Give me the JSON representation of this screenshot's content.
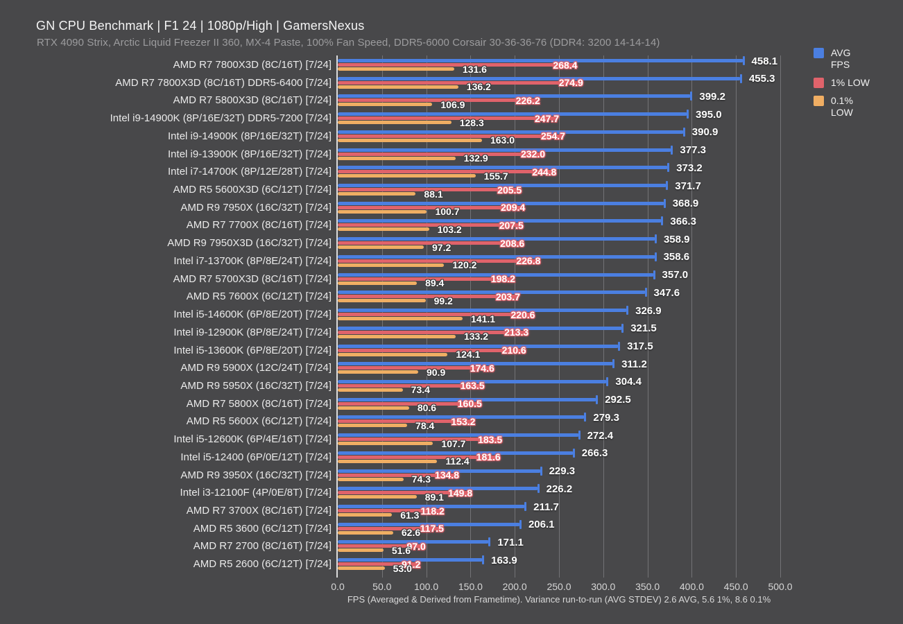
{
  "header": {
    "title": "GN CPU Benchmark | F1 24 | 1080p/High | GamersNexus",
    "subtitle": "RTX 4090 Strix, Arctic Liquid Freezer II 360, MX-4 Paste, 100% Fan Speed, DDR5-6000 Corsair 30-36-36-76 (DDR4: 3200 14-14-14)"
  },
  "legend": {
    "position": "top-right",
    "items": [
      {
        "label": "AVG FPS",
        "color": "#4b7fe1"
      },
      {
        "label": "1% LOW",
        "color": "#e0636b"
      },
      {
        "label": "0.1% LOW",
        "color": "#f0ae63"
      }
    ]
  },
  "chart_data": {
    "type": "bar",
    "orientation": "horizontal",
    "title": "GN CPU Benchmark | F1 24 | 1080p/High | GamersNexus",
    "subtitle": "RTX 4090 Strix, Arctic Liquid Freezer II 360, MX-4 Paste, 100% Fan Speed, DDR5-6000 Corsair 30-36-36-76 (DDR4: 3200 14-14-14)",
    "xlabel": "FPS (Averaged & Derived from Frametime). Variance run-to-run (AVG STDEV) 2.6 AVG, 5.6 1%, 8.6 0.1%",
    "xlim": [
      0,
      500
    ],
    "x_ticks": [
      0,
      50,
      100,
      150,
      200,
      250,
      300,
      350,
      400,
      450,
      500
    ],
    "x_tick_labels": [
      "0.0",
      "50.0",
      "100.0",
      "150.0",
      "200.0",
      "250.0",
      "300.0",
      "350.0",
      "400.0",
      "450.0",
      "500.0"
    ],
    "grid": true,
    "legend_position": "top-right",
    "categories": [
      "AMD R7 7800X3D (8C/16T) [7/24]",
      "AMD R7 7800X3D (8C/16T) DDR5-6400 [7/24]",
      "AMD R7 5800X3D (8C/16T) [7/24]",
      "Intel i9-14900K (8P/16E/32T) DDR5-7200 [7/24]",
      "Intel i9-14900K (8P/16E/32T) [7/24]",
      "Intel i9-13900K (8P/16E/32T) [7/24]",
      "Intel i7-14700K (8P/12E/28T) [7/24]",
      "AMD R5 5600X3D (6C/12T) [7/24]",
      "AMD R9 7950X (16C/32T) [7/24]",
      "AMD R7 7700X (8C/16T) [7/24]",
      "AMD R9 7950X3D (16C/32T) [7/24]",
      "Intel i7-13700K (8P/8E/24T) [7/24]",
      "AMD R7 5700X3D (8C/16T) [7/24]",
      "AMD R5 7600X (6C/12T) [7/24]",
      "Intel i5-14600K (6P/8E/20T) [7/24]",
      "Intel i9-12900K (8P/8E/24T) [7/24]",
      "Intel i5-13600K (6P/8E/20T) [7/24]",
      "AMD R9 5900X (12C/24T) [7/24]",
      "AMD R9 5950X (16C/32T) [7/24]",
      "AMD R7 5800X (8C/16T) [7/24]",
      "AMD R5 5600X (6C/12T) [7/24]",
      "Intel i5-12600K (6P/4E/16T) [7/24]",
      "Intel i5-12400 (6P/0E/12T) [7/24]",
      "AMD R9 3950X (16C/32T) [7/24]",
      "Intel i3-12100F (4P/0E/8T) [7/24]",
      "AMD R7 3700X (8C/16T) [7/24]",
      "AMD R5 3600 (6C/12T) [7/24]",
      "AMD R7 2700 (8C/16T) [7/24]",
      "AMD R5 2600 (6C/12T) [7/24]"
    ],
    "series": [
      {
        "name": "AVG FPS",
        "color": "#4b7fe1",
        "values": [
          458.1,
          455.3,
          399.2,
          395.0,
          390.9,
          377.3,
          373.2,
          371.7,
          368.9,
          366.3,
          358.9,
          358.6,
          357.0,
          347.6,
          326.9,
          321.5,
          317.5,
          311.2,
          304.4,
          292.5,
          279.3,
          272.4,
          266.3,
          229.3,
          226.2,
          211.7,
          206.1,
          171.1,
          163.9
        ]
      },
      {
        "name": "1% LOW",
        "color": "#e0636b",
        "values": [
          268.4,
          274.9,
          226.2,
          247.7,
          254.7,
          232.0,
          244.8,
          205.5,
          209.4,
          207.5,
          208.6,
          226.8,
          198.2,
          203.7,
          220.6,
          213.3,
          210.6,
          174.6,
          163.5,
          160.5,
          153.2,
          183.5,
          181.6,
          134.8,
          149.8,
          118.2,
          117.5,
          97.0,
          91.2
        ]
      },
      {
        "name": "0.1% LOW",
        "color": "#f0ae63",
        "values": [
          131.6,
          136.2,
          106.9,
          128.3,
          163.0,
          132.9,
          155.7,
          88.1,
          100.7,
          103.2,
          97.2,
          120.2,
          89.4,
          99.2,
          141.1,
          133.2,
          124.1,
          90.9,
          73.4,
          80.6,
          78.4,
          107.7,
          112.4,
          74.3,
          89.1,
          61.3,
          62.6,
          51.6,
          53.0
        ]
      }
    ]
  },
  "colors": {
    "background": "#48484a",
    "grid": "#737376",
    "axis": "#dcdcdc",
    "title_text": "#f4f4f4",
    "subtitle_text": "#9c9c9e",
    "category_text": "#eaeaea",
    "value_text": "#ffffff"
  }
}
